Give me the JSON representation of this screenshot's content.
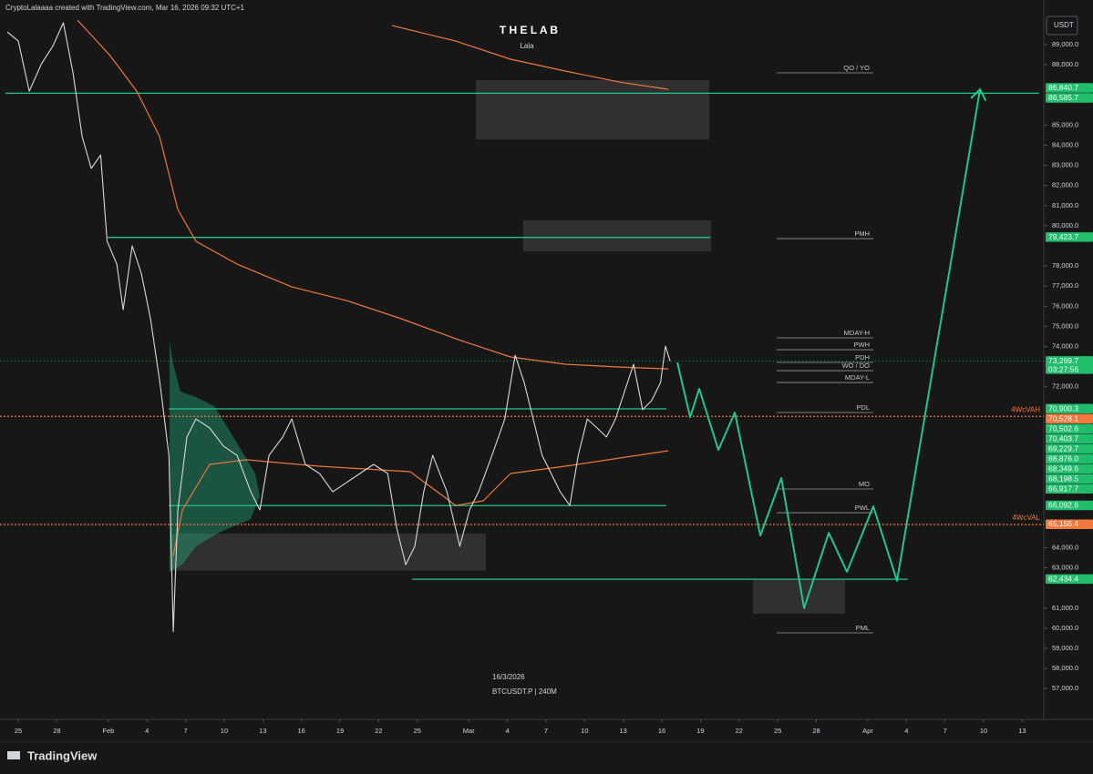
{
  "header": {
    "attribution": "CryptoLalaaaa created with TradingView.com, Mar 16, 2026 09:32 UTC+1",
    "currency": "USDT",
    "brand": "TradingView"
  },
  "chart_data": {
    "type": "line",
    "title": "T H E  L A B",
    "subtitle": "Lala",
    "date_label": "16/3/2026",
    "symbol_label": "BTCUSDT.P | 240M",
    "grid": false,
    "xlim": [
      23.58,
      104.67
    ],
    "ylim": [
      55470,
      91220
    ],
    "xticks": [
      {
        "value": 25,
        "label": "25"
      },
      {
        "value": 28,
        "label": "28"
      },
      {
        "value": 32,
        "label": "Feb"
      },
      {
        "value": 35,
        "label": "4"
      },
      {
        "value": 38,
        "label": "7"
      },
      {
        "value": 41,
        "label": "10"
      },
      {
        "value": 44,
        "label": "13"
      },
      {
        "value": 47,
        "label": "16"
      },
      {
        "value": 50,
        "label": "19"
      },
      {
        "value": 53,
        "label": "22"
      },
      {
        "value": 56,
        "label": "25"
      },
      {
        "value": 60,
        "label": "Mar"
      },
      {
        "value": 63,
        "label": "4"
      },
      {
        "value": 66,
        "label": "7"
      },
      {
        "value": 69,
        "label": "10"
      },
      {
        "value": 72,
        "label": "13"
      },
      {
        "value": 75,
        "label": "16"
      },
      {
        "value": 78,
        "label": "19"
      },
      {
        "value": 81,
        "label": "22"
      },
      {
        "value": 84,
        "label": "25"
      },
      {
        "value": 87,
        "label": "28"
      },
      {
        "value": 91,
        "label": "Apr"
      },
      {
        "value": 94,
        "label": "4"
      },
      {
        "value": 97,
        "label": "7"
      },
      {
        "value": 100,
        "label": "10"
      },
      {
        "value": 103,
        "label": "13"
      }
    ],
    "yticks": [
      {
        "value": 89000,
        "label": "89,000.0"
      },
      {
        "value": 88000,
        "label": "88,000.0"
      },
      {
        "value": 85000,
        "label": "85,000.0"
      },
      {
        "value": 84000,
        "label": "84,000.0"
      },
      {
        "value": 83000,
        "label": "83,000.0"
      },
      {
        "value": 82000,
        "label": "82,000.0"
      },
      {
        "value": 81000,
        "label": "81,000.0"
      },
      {
        "value": 80000,
        "label": "80,000.0"
      },
      {
        "value": 78000,
        "label": "78,000.0"
      },
      {
        "value": 77000,
        "label": "77,000.0"
      },
      {
        "value": 76000,
        "label": "76,000.0"
      },
      {
        "value": 75000,
        "label": "75,000.0"
      },
      {
        "value": 74000,
        "label": "74,000.0"
      },
      {
        "value": 72000,
        "label": "72,000.0"
      },
      {
        "value": 64000,
        "label": "64,000.0"
      },
      {
        "value": 63000,
        "label": "63,000.0"
      },
      {
        "value": 61000,
        "label": "61,000.0"
      },
      {
        "value": 60000,
        "label": "60,000.0"
      },
      {
        "value": 59000,
        "label": "59,000.0"
      },
      {
        "value": 58000,
        "label": "58,000.0"
      },
      {
        "value": 57000,
        "label": "57,000.0"
      }
    ],
    "series": [
      {
        "color": "#d9d9d9",
        "x": [
          24.15,
          25,
          25.85,
          26.8,
          27.7,
          28.5,
          29.25,
          29.96,
          30.67,
          31.4,
          31.9,
          32.65,
          33.15,
          33.85,
          34.56,
          35.27,
          36,
          36.7,
          37.04,
          37.4,
          38.1,
          38.8,
          39.87,
          40.94,
          42,
          43.06,
          43.77,
          44.48,
          45.54,
          46.25,
          47.3,
          48.4,
          49.43,
          50.5,
          51.55,
          52.6,
          53.7,
          54.4,
          55.1,
          55.8,
          56.5,
          57.2,
          58.3,
          59.3,
          60.06,
          60.76,
          61.8,
          62.8,
          63.6,
          64.3,
          65,
          65.7,
          66.4,
          67.1,
          67.85,
          68.5,
          69.2,
          69.97,
          70.7,
          71.4,
          72.1,
          72.8,
          73.5,
          74.2,
          74.9,
          75.28,
          75.64
        ],
        "values": [
          89630,
          89180,
          86690,
          88050,
          88950,
          90090,
          87600,
          84430,
          82850,
          83520,
          79230,
          78100,
          75830,
          79000,
          77640,
          75380,
          72210,
          68590,
          59830,
          65880,
          69500,
          70400,
          69950,
          69050,
          68590,
          66780,
          65880,
          68590,
          69500,
          70400,
          68140,
          67690,
          66780,
          67240,
          67690,
          68140,
          67690,
          64970,
          63160,
          64070,
          66780,
          68590,
          66780,
          64070,
          65880,
          66780,
          68590,
          70400,
          73570,
          72210,
          70400,
          68590,
          67690,
          66780,
          66100,
          68590,
          70400,
          69950,
          69500,
          70400,
          71760,
          73120,
          70860,
          71310,
          72210,
          74020,
          73269.7
        ]
      }
    ],
    "moving_averages": [
      {
        "color": "#f0783c",
        "x": [
          54.04,
          58.99,
          63.24,
          67.49,
          71.74,
          75.5
        ],
        "values": [
          89950,
          89180,
          88280,
          87690,
          87140,
          86780
        ]
      },
      {
        "color": "#f0783c",
        "x": [
          29.6,
          32.08,
          34.2,
          35.98,
          37.39,
          38.81,
          42,
          46.25,
          50.5,
          54.75,
          59,
          63.24,
          67.49,
          71.74,
          75.5
        ],
        "values": [
          90220,
          88500,
          86690,
          84430,
          80810,
          79230,
          78090,
          76960,
          76280,
          75380,
          74380,
          73480,
          73120,
          72980,
          72890
        ]
      },
      {
        "color": "#f0783c",
        "x": [
          37.04,
          37.75,
          39.87,
          42.7,
          48.37,
          55.45,
          58.99,
          61.12,
          63.24,
          67.49,
          75.5
        ],
        "values": [
          63610,
          65880,
          68140,
          68370,
          68050,
          67780,
          66100,
          66330,
          67690,
          68050,
          68820
        ]
      }
    ],
    "projection": {
      "color": "#22c58b",
      "x": [
        76.2,
        77.2,
        77.9,
        79.39,
        80.67,
        82.65,
        84.28,
        86.05,
        87.96,
        89.38,
        91.43,
        93.27,
        99.72
      ],
      "values": [
        73210,
        70490,
        71900,
        68860,
        70720,
        64610,
        67460,
        60990,
        64740,
        62800,
        66060,
        62350,
        86780
      ]
    },
    "levels": [
      {
        "value": 86585.7,
        "from": 24.0,
        "to": 104.3
      },
      {
        "value": 79423.7,
        "from": 31.94,
        "to": 78.75
      },
      {
        "value": 70900.3,
        "from": 36.69,
        "to": 75.35
      },
      {
        "value": 66092.6,
        "from": 36.69,
        "to": 75.35
      },
      {
        "value": 62434.4,
        "from": 55.6,
        "to": 94.1
      }
    ],
    "reference_lines": [
      {
        "value": 70528.1,
        "label": "4WcVAH",
        "color": "#f0783c"
      },
      {
        "value": 65155.4,
        "label": "4WcVAL",
        "color": "#f0783c"
      }
    ],
    "last_price": {
      "value": 73269.7,
      "label": "73,269.7",
      "countdown": "03:27:56",
      "color": "#1fbd6c"
    },
    "axis_tags": [
      {
        "value": 86840.7,
        "label": "86,840.7",
        "color": "#1fbd6c"
      },
      {
        "value": 86585.7,
        "label": "86,585.7",
        "color": "#1fbd6c"
      },
      {
        "value": 79423.7,
        "label": "79,423.7",
        "color": "#1fbd6c"
      },
      {
        "value": 70900.3,
        "label": "70,900.3",
        "color": "#1fbd6c"
      },
      {
        "value": 70528.1,
        "label": "70,528.1",
        "color": "#f0783c"
      },
      {
        "value": 70502.6,
        "label": "70,502.6",
        "color": "#1fbd6c"
      },
      {
        "value": 70403.7,
        "label": "70,403.7",
        "color": "#1fbd6c"
      },
      {
        "value": 69229.7,
        "label": "69,229.7",
        "color": "#1fbd6c"
      },
      {
        "value": 68876.0,
        "label": "68,876.0",
        "color": "#1fbd6c"
      },
      {
        "value": 68349.6,
        "label": "68,349.6",
        "color": "#1fbd6c"
      },
      {
        "value": 68198.5,
        "label": "68,198.5",
        "color": "#1fbd6c"
      },
      {
        "value": 66917.7,
        "label": "66,917.7",
        "color": "#1fbd6c"
      },
      {
        "value": 66092.6,
        "label": "66,092.6",
        "color": "#1fbd6c"
      },
      {
        "value": 65155.4,
        "label": "65,155.4",
        "color": "#f0783c"
      },
      {
        "value": 62434.4,
        "label": "62,434.4",
        "color": "#1fbd6c"
      }
    ],
    "key_levels": [
      {
        "label": "QO / YO",
        "value": 87600
      },
      {
        "label": "PMH",
        "value": 79360
      },
      {
        "label": "MDAY-H",
        "value": 74430
      },
      {
        "label": "PWH",
        "value": 73840
      },
      {
        "label": "PDH",
        "value": 73210
      },
      {
        "label": "WO / DO",
        "value": 72800
      },
      {
        "label": "MDAY-L",
        "value": 72210
      },
      {
        "label": "PDL",
        "value": 70720
      },
      {
        "label": "MO",
        "value": 66920
      },
      {
        "label": "PWL",
        "value": 65740
      },
      {
        "label": "PML",
        "value": 59770
      }
    ],
    "zones": [
      {
        "x": [
          60.55,
          78.68
        ],
        "y": [
          84290,
          87240
        ]
      },
      {
        "x": [
          64.23,
          78.82
        ],
        "y": [
          78730,
          80270
        ]
      },
      {
        "x": [
          36.76,
          61.33
        ],
        "y": [
          62860,
          64700
        ]
      },
      {
        "x": [
          82.08,
          89.23
        ],
        "y": [
          60720,
          62390
        ]
      }
    ]
  }
}
